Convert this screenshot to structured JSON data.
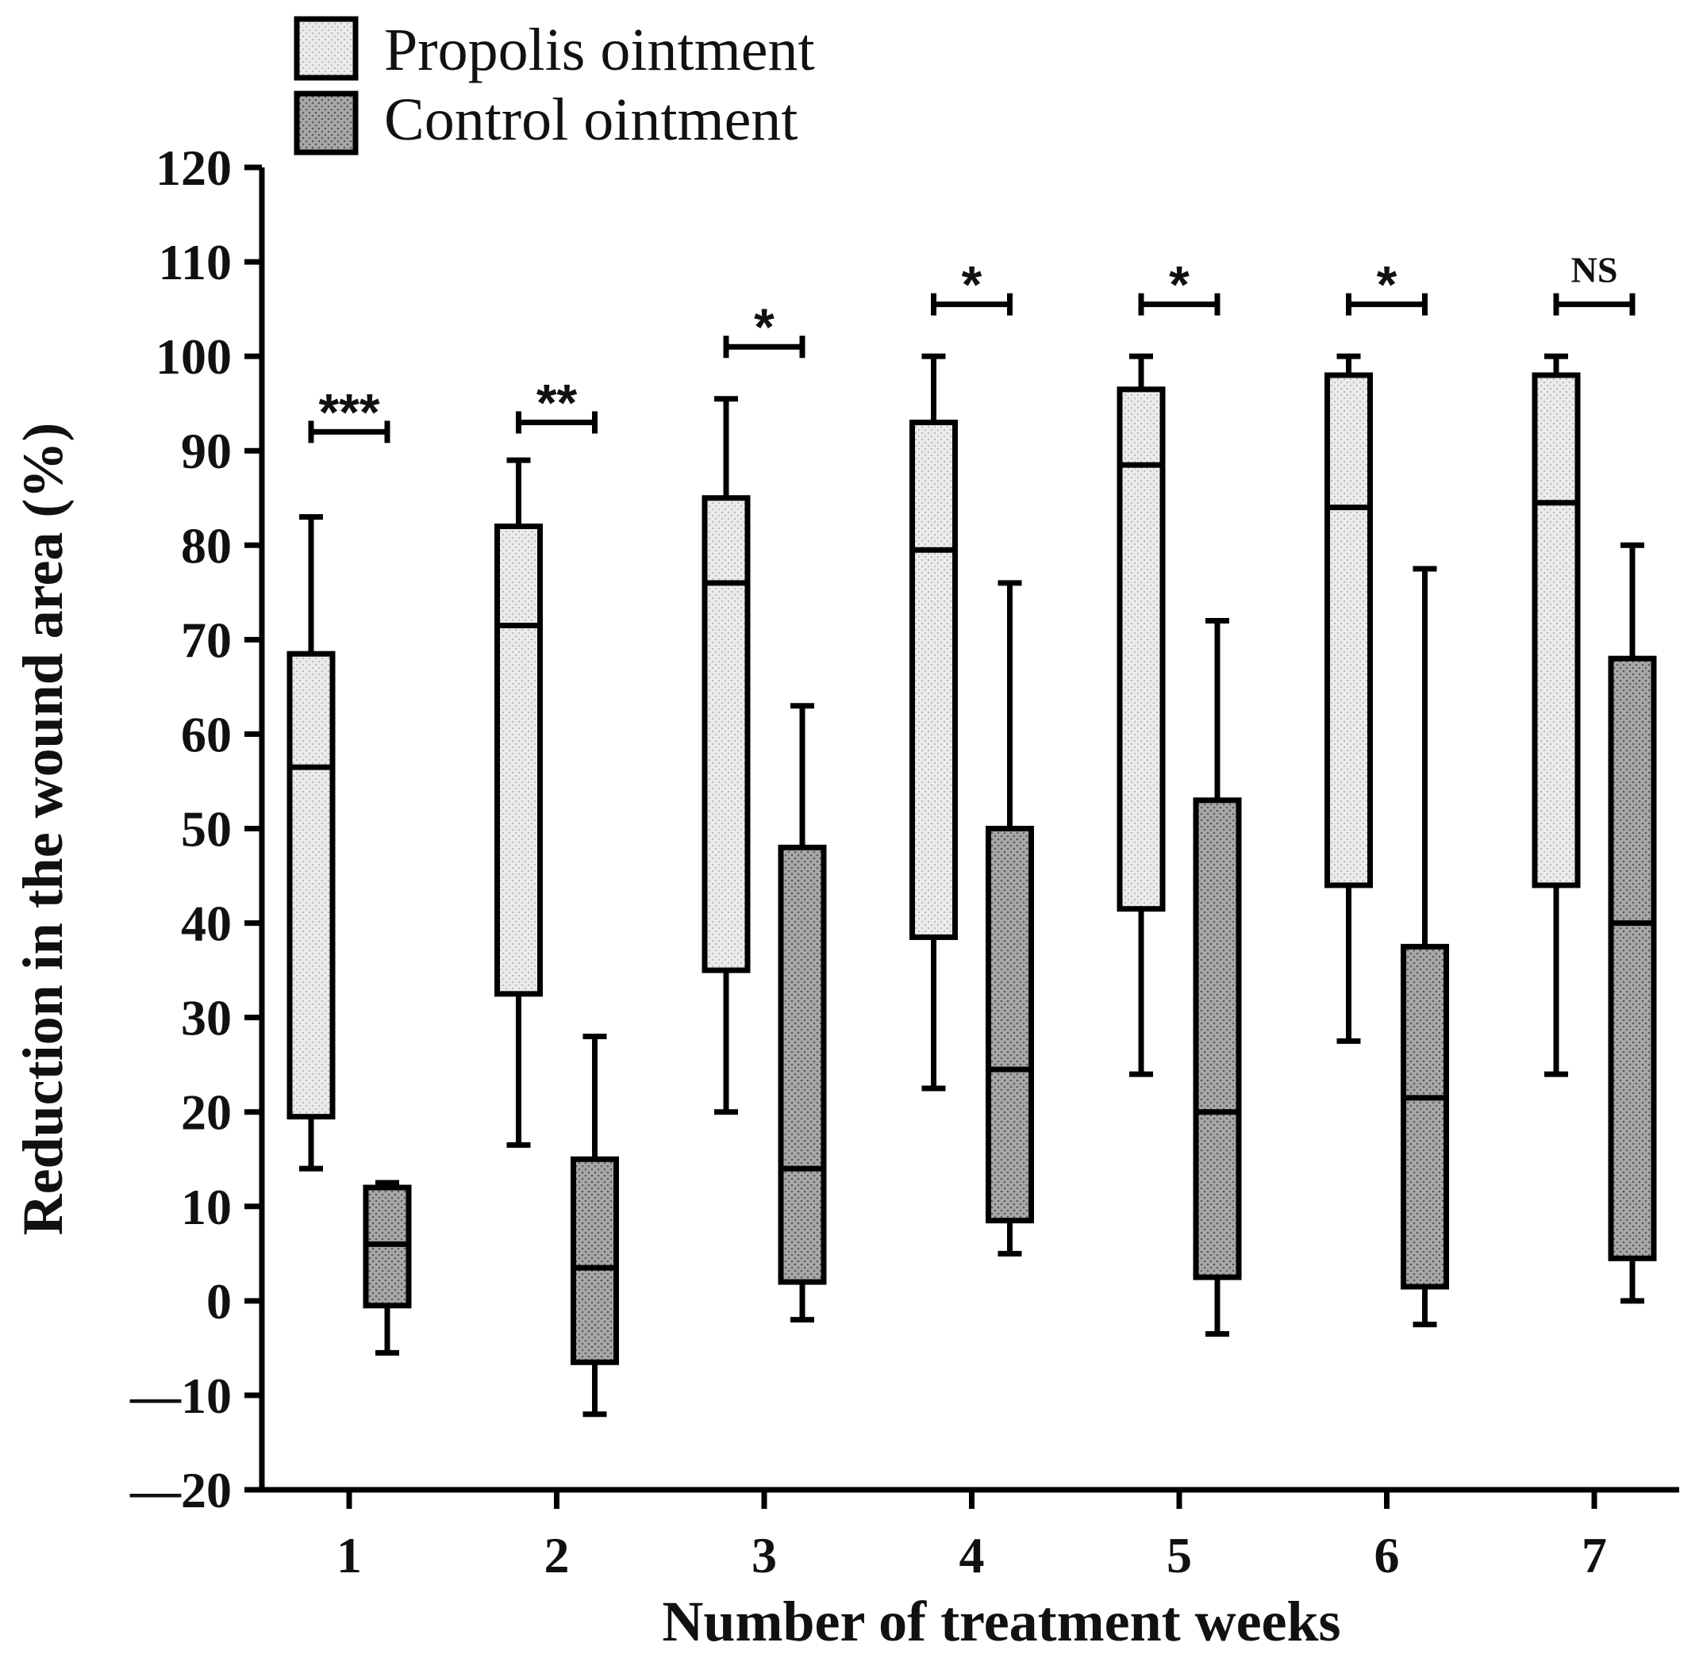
{
  "chart_data": {
    "type": "boxplot",
    "xlabel": "Number of treatment weeks",
    "ylabel": "Reduction in the wound area (%)",
    "ylim": [
      -20,
      120
    ],
    "yticks": [
      -20,
      -10,
      0,
      10,
      20,
      30,
      40,
      50,
      60,
      70,
      80,
      90,
      100,
      110,
      120
    ],
    "ytick_labels": [
      "—20",
      "—10",
      "0",
      "10",
      "20",
      "30",
      "40",
      "50",
      "60",
      "70",
      "80",
      "90",
      "100",
      "110",
      "120"
    ],
    "categories": [
      "1",
      "2",
      "3",
      "4",
      "5",
      "6",
      "7"
    ],
    "legend_position": "top-left",
    "series": [
      {
        "name": "Propolis ointment",
        "color": "#e4e4e4",
        "boxes": [
          {
            "min": 14,
            "q1": 19.5,
            "median": 56.5,
            "q3": 68.5,
            "max": 83
          },
          {
            "min": 16.5,
            "q1": 32.5,
            "median": 71.5,
            "q3": 82,
            "max": 89
          },
          {
            "min": 20,
            "q1": 35,
            "median": 76,
            "q3": 85,
            "max": 95.5
          },
          {
            "min": 22.5,
            "q1": 38.5,
            "median": 79.5,
            "q3": 93,
            "max": 100
          },
          {
            "min": 24,
            "q1": 41.5,
            "median": 88.5,
            "q3": 96.5,
            "max": 100
          },
          {
            "min": 27.5,
            "q1": 44,
            "median": 84,
            "q3": 98,
            "max": 100
          },
          {
            "min": 24,
            "q1": 44,
            "median": 84.5,
            "q3": 98,
            "max": 100
          }
        ]
      },
      {
        "name": "Control ointment",
        "color": "#9a9a9a",
        "boxes": [
          {
            "min": -5.5,
            "q1": -0.5,
            "median": 6,
            "q3": 12,
            "max": 12.5
          },
          {
            "min": -12,
            "q1": -6.5,
            "median": 3.5,
            "q3": 15,
            "max": 28
          },
          {
            "min": -2,
            "q1": 2,
            "median": 14,
            "q3": 48,
            "max": 63
          },
          {
            "min": 5,
            "q1": 8.5,
            "median": 24.5,
            "q3": 50,
            "max": 76
          },
          {
            "min": -3.5,
            "q1": 2.5,
            "median": 20,
            "q3": 53,
            "max": 72
          },
          {
            "min": -2.5,
            "q1": 1.5,
            "median": 21.5,
            "q3": 37.5,
            "max": 77.5
          },
          {
            "min": 0,
            "q1": 4.5,
            "median": 40,
            "q3": 68,
            "max": 80
          }
        ]
      }
    ],
    "significance": [
      {
        "week": "1",
        "label": "***",
        "y": 92
      },
      {
        "week": "2",
        "label": "**",
        "y": 93
      },
      {
        "week": "3",
        "label": "*",
        "y": 101
      },
      {
        "week": "4",
        "label": "*",
        "y": 105.5
      },
      {
        "week": "5",
        "label": "*",
        "y": 105.5
      },
      {
        "week": "6",
        "label": "*",
        "y": 105.5
      },
      {
        "week": "7",
        "label": "NS",
        "y": 105.5
      }
    ]
  }
}
